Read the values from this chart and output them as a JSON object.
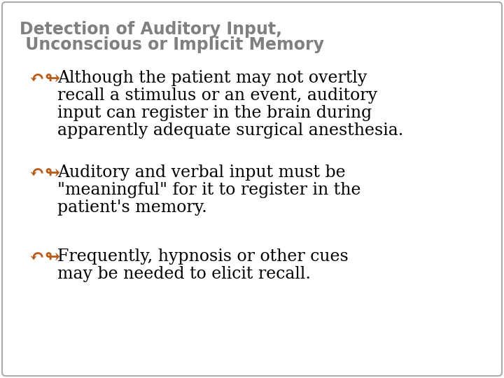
{
  "title_line1": "Detection of Auditory Input,",
  "title_line2": " Unconscious or Implicit Memory",
  "title_color": "#808080",
  "title_fontsize": 17,
  "bullet_color": "#b85c1a",
  "bullet_fontsize": 17,
  "body_color": "#000000",
  "body_fontsize": 17,
  "background_color": "#ffffff",
  "border_color": "#aaaaaa",
  "fig_width": 7.2,
  "fig_height": 5.4,
  "bullets": [
    {
      "lines": [
        "Although the patient may not overtly",
        "recall a stimulus or an event, auditory",
        "input can register in the brain during",
        "apparently adequate surgical anesthesia."
      ]
    },
    {
      "lines": [
        "Auditory and verbal input must be",
        "\"meaningful\" for it to register in the",
        "patient's memory."
      ]
    },
    {
      "lines": [
        "Frequently, hypnosis or other cues",
        "may be needed to elicit recall."
      ]
    }
  ]
}
